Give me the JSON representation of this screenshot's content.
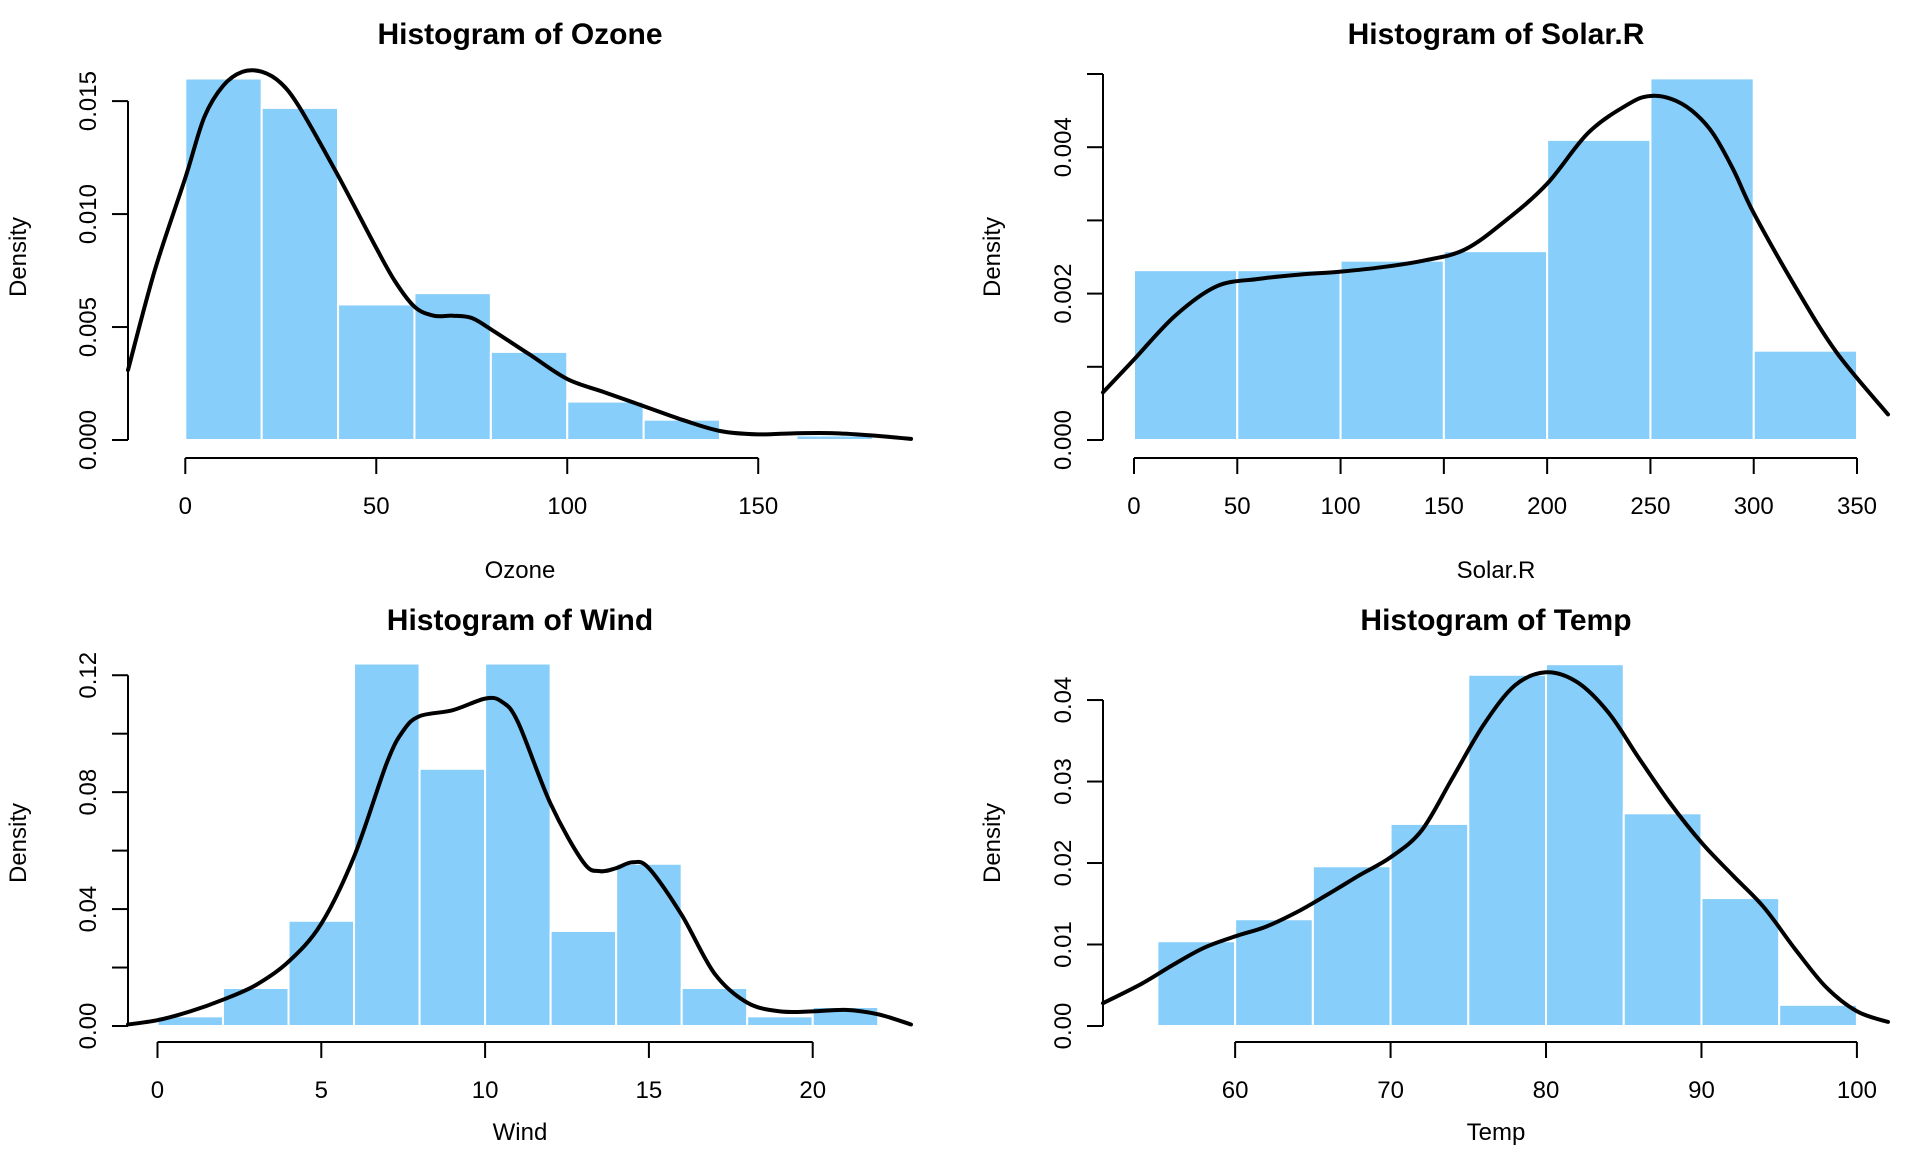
{
  "chart_data": [
    {
      "type": "bar",
      "title": "Histogram of Ozone",
      "xlabel": "Ozone",
      "ylabel": "Density",
      "xlim": [
        -15,
        190
      ],
      "ylim": [
        0,
        0.0162
      ],
      "x_ticks": [
        0,
        50,
        100,
        150
      ],
      "x_tick_labels": [
        "0",
        "50",
        "100",
        "150"
      ],
      "y_ticks": [
        0,
        0.005,
        0.01,
        0.015
      ],
      "y_tick_labels": [
        "0.000",
        "0.005",
        "0.010",
        "0.015"
      ],
      "bar_color": "#87CEFA",
      "bins": [
        {
          "from": 0,
          "to": 20,
          "density": 0.016
        },
        {
          "from": 20,
          "to": 40,
          "density": 0.0147
        },
        {
          "from": 40,
          "to": 60,
          "density": 0.006
        },
        {
          "from": 60,
          "to": 80,
          "density": 0.0065
        },
        {
          "from": 80,
          "to": 100,
          "density": 0.0039
        },
        {
          "from": 100,
          "to": 120,
          "density": 0.0017
        },
        {
          "from": 120,
          "to": 140,
          "density": 0.0009
        },
        {
          "from": 140,
          "to": 160,
          "density": 0
        },
        {
          "from": 160,
          "to": 180,
          "density": 0.0002
        }
      ],
      "density_curve": {
        "x": [
          -15,
          -8,
          0,
          5,
          10,
          15,
          20,
          25,
          30,
          40,
          50,
          55,
          60,
          65,
          70,
          75,
          80,
          90,
          100,
          110,
          120,
          130,
          140,
          150,
          160,
          170,
          180,
          190
        ],
        "y": [
          0.0031,
          0.0075,
          0.0116,
          0.0143,
          0.0157,
          0.0163,
          0.0163,
          0.0158,
          0.0147,
          0.0117,
          0.0085,
          0.007,
          0.0059,
          0.0055,
          0.0055,
          0.0054,
          0.0049,
          0.0038,
          0.0027,
          0.0021,
          0.0015,
          0.0009,
          0.0004,
          0.00025,
          0.0003,
          0.0003,
          0.0002,
          5e-05
        ]
      }
    },
    {
      "type": "bar",
      "title": "Histogram of Solar.R",
      "xlabel": "Solar.R",
      "ylabel": "Density",
      "xlim": [
        -15,
        365
      ],
      "ylim": [
        0,
        0.005
      ],
      "x_ticks": [
        0,
        50,
        100,
        150,
        200,
        250,
        300,
        350
      ],
      "x_tick_labels": [
        "0",
        "50",
        "100",
        "150",
        "200",
        "250",
        "300",
        "350"
      ],
      "y_ticks": [
        0,
        0.001,
        0.002,
        0.003,
        0.004,
        0.005
      ],
      "y_tick_labels": [
        "0.000",
        "",
        "0.002",
        "",
        "0.004",
        ""
      ],
      "bar_color": "#87CEFA",
      "bins": [
        {
          "from": 0,
          "to": 50,
          "density": 0.00232
        },
        {
          "from": 50,
          "to": 100,
          "density": 0.00232
        },
        {
          "from": 100,
          "to": 150,
          "density": 0.00245
        },
        {
          "from": 150,
          "to": 200,
          "density": 0.00258
        },
        {
          "from": 200,
          "to": 250,
          "density": 0.0041
        },
        {
          "from": 250,
          "to": 300,
          "density": 0.00494
        },
        {
          "from": 300,
          "to": 350,
          "density": 0.00122
        }
      ],
      "density_curve": {
        "x": [
          -15,
          0,
          20,
          40,
          60,
          80,
          100,
          120,
          140,
          160,
          180,
          200,
          220,
          240,
          250,
          260,
          270,
          280,
          290,
          300,
          320,
          340,
          365
        ],
        "y": [
          0.00065,
          0.0011,
          0.0017,
          0.0021,
          0.0022,
          0.00226,
          0.0023,
          0.00236,
          0.00245,
          0.0026,
          0.003,
          0.0035,
          0.0042,
          0.0046,
          0.0047,
          0.00466,
          0.0045,
          0.0042,
          0.0037,
          0.0031,
          0.0021,
          0.0012,
          0.00035
        ]
      }
    },
    {
      "type": "bar",
      "title": "Histogram of Wind",
      "xlabel": "Wind",
      "ylabel": "Density",
      "xlim": [
        -0.9,
        23
      ],
      "ylim": [
        0,
        0.1235
      ],
      "x_ticks": [
        0,
        5,
        10,
        15,
        20
      ],
      "x_tick_labels": [
        "0",
        "5",
        "10",
        "15",
        "20"
      ],
      "y_ticks": [
        0,
        0.02,
        0.04,
        0.06,
        0.08,
        0.1,
        0.12
      ],
      "y_tick_labels": [
        "0.00",
        "",
        "0.04",
        "",
        "0.08",
        "",
        "0.12"
      ],
      "bar_color": "#87CEFA",
      "bins": [
        {
          "from": 0,
          "to": 2,
          "density": 0.0033
        },
        {
          "from": 2,
          "to": 4,
          "density": 0.013
        },
        {
          "from": 4,
          "to": 6,
          "density": 0.036
        },
        {
          "from": 6,
          "to": 8,
          "density": 0.124
        },
        {
          "from": 8,
          "to": 10,
          "density": 0.088
        },
        {
          "from": 10,
          "to": 12,
          "density": 0.124
        },
        {
          "from": 12,
          "to": 14,
          "density": 0.0325
        },
        {
          "from": 14,
          "to": 16,
          "density": 0.0555
        },
        {
          "from": 16,
          "to": 18,
          "density": 0.013
        },
        {
          "from": 18,
          "to": 20,
          "density": 0.0033
        },
        {
          "from": 20,
          "to": 22,
          "density": 0.0065
        }
      ],
      "density_curve": {
        "x": [
          -0.9,
          0,
          1,
          2,
          3,
          4,
          5,
          6,
          7,
          7.5,
          8,
          9,
          10,
          10.5,
          11,
          12,
          13,
          13.5,
          14,
          14.5,
          15,
          16,
          17,
          18,
          19,
          20,
          21,
          22,
          23
        ],
        "y": [
          0.0005,
          0.002,
          0.005,
          0.009,
          0.014,
          0.022,
          0.035,
          0.058,
          0.09,
          0.101,
          0.106,
          0.108,
          0.112,
          0.111,
          0.104,
          0.076,
          0.056,
          0.053,
          0.054,
          0.056,
          0.054,
          0.038,
          0.018,
          0.008,
          0.005,
          0.005,
          0.0055,
          0.004,
          0.0005
        ]
      }
    },
    {
      "type": "bar",
      "title": "Histogram of Temp",
      "xlabel": "Temp",
      "ylabel": "Density",
      "xlim": [
        51.5,
        102
      ],
      "ylim": [
        0,
        0.0443
      ],
      "x_ticks": [
        60,
        70,
        80,
        90,
        100
      ],
      "x_tick_labels": [
        "60",
        "70",
        "80",
        "90",
        "100"
      ],
      "y_ticks": [
        0,
        0.01,
        0.02,
        0.03,
        0.04
      ],
      "y_tick_labels": [
        "0.00",
        "0.01",
        "0.02",
        "0.03",
        "0.04"
      ],
      "bar_color": "#87CEFA",
      "bins": [
        {
          "from": 55,
          "to": 60,
          "density": 0.0104
        },
        {
          "from": 60,
          "to": 65,
          "density": 0.0131
        },
        {
          "from": 65,
          "to": 70,
          "density": 0.0196
        },
        {
          "from": 70,
          "to": 75,
          "density": 0.0248
        },
        {
          "from": 75,
          "to": 80,
          "density": 0.0431
        },
        {
          "from": 80,
          "to": 85,
          "density": 0.0444
        },
        {
          "from": 85,
          "to": 90,
          "density": 0.0261
        },
        {
          "from": 90,
          "to": 95,
          "density": 0.0157
        },
        {
          "from": 95,
          "to": 100,
          "density": 0.0026
        }
      ],
      "density_curve": {
        "x": [
          51.5,
          54,
          56,
          58,
          60,
          62,
          64,
          66,
          68,
          70,
          72,
          74,
          76,
          78,
          80,
          82,
          84,
          86,
          88,
          90,
          92,
          94,
          96,
          98,
          100,
          102
        ],
        "y": [
          0.0028,
          0.0052,
          0.0075,
          0.0096,
          0.011,
          0.0122,
          0.014,
          0.0162,
          0.0185,
          0.0207,
          0.024,
          0.0305,
          0.037,
          0.0418,
          0.0434,
          0.0422,
          0.0385,
          0.0328,
          0.0273,
          0.0225,
          0.0185,
          0.0146,
          0.0095,
          0.0048,
          0.0018,
          0.0005
        ]
      }
    }
  ]
}
